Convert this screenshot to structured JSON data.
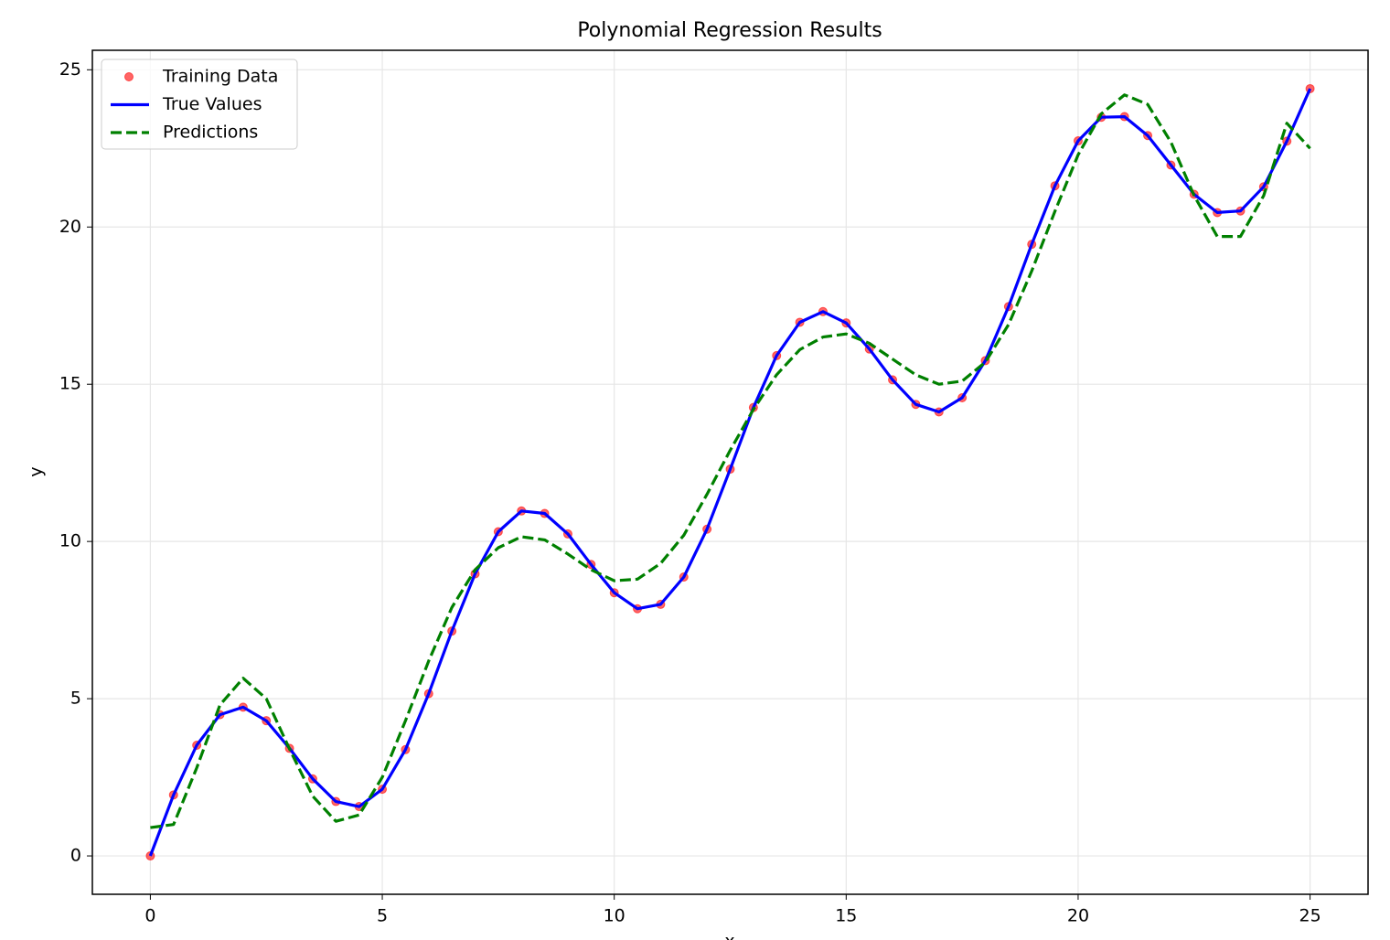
{
  "chart_data": {
    "type": "regression",
    "title": "Polynomial Regression Results",
    "xlabel": "x",
    "ylabel": "y",
    "x": [
      0,
      0.5,
      1,
      1.5,
      2,
      2.5,
      3,
      3.5,
      4,
      4.5,
      5,
      5.5,
      6,
      6.5,
      7,
      7.5,
      8,
      8.5,
      9,
      9.5,
      10,
      10.5,
      11,
      11.5,
      12,
      12.5,
      13,
      13.5,
      14,
      14.5,
      15,
      15.5,
      16,
      16.5,
      17,
      17.5,
      18,
      18.5,
      19,
      19.5,
      20,
      20.5,
      21,
      21.5,
      22,
      22.5,
      23,
      23.5,
      24,
      24.5,
      25
    ],
    "series": [
      {
        "name": "Training Data",
        "kind": "scatter",
        "color": "#ff0000",
        "values": [
          0,
          1.94,
          3.52,
          4.49,
          4.73,
          4.3,
          3.42,
          2.45,
          1.73,
          1.57,
          2.12,
          3.38,
          5.16,
          7.15,
          8.97,
          10.31,
          10.97,
          10.89,
          10.24,
          9.27,
          8.37,
          7.86,
          8.0,
          8.87,
          10.39,
          12.3,
          14.26,
          15.91,
          16.97,
          17.31,
          16.95,
          16.12,
          15.14,
          14.36,
          14.12,
          14.57,
          15.75,
          17.47,
          19.45,
          21.31,
          22.74,
          23.49,
          23.51,
          22.91,
          21.97,
          21.04,
          20.46,
          20.51,
          21.28,
          22.73,
          24.4
        ]
      },
      {
        "name": "True Values",
        "kind": "line",
        "color": "#0000ff",
        "values": [
          0,
          1.94,
          3.52,
          4.49,
          4.73,
          4.3,
          3.42,
          2.45,
          1.73,
          1.57,
          2.12,
          3.38,
          5.16,
          7.15,
          8.97,
          10.31,
          10.97,
          10.89,
          10.24,
          9.27,
          8.37,
          7.86,
          8.0,
          8.87,
          10.39,
          12.3,
          14.26,
          15.91,
          16.97,
          17.31,
          16.95,
          16.12,
          15.14,
          14.36,
          14.12,
          14.57,
          15.75,
          17.47,
          19.45,
          21.31,
          22.74,
          23.49,
          23.51,
          22.91,
          21.97,
          21.04,
          20.46,
          20.51,
          21.28,
          22.73,
          24.4
        ]
      },
      {
        "name": "Predictions",
        "kind": "dashed",
        "color": "#008000",
        "values": [
          0.9,
          1.0,
          2.8,
          4.8,
          5.65,
          5.0,
          3.4,
          1.9,
          1.1,
          1.3,
          2.5,
          4.3,
          6.2,
          7.9,
          9.1,
          9.8,
          10.15,
          10.05,
          9.6,
          9.1,
          8.75,
          8.8,
          9.3,
          10.2,
          11.5,
          12.9,
          14.2,
          15.3,
          16.1,
          16.5,
          16.6,
          16.3,
          15.8,
          15.3,
          15.0,
          15.1,
          15.7,
          16.9,
          18.6,
          20.5,
          22.3,
          23.6,
          24.2,
          23.9,
          22.7,
          21.0,
          19.7,
          19.7,
          21.0,
          23.3,
          22.5
        ]
      }
    ],
    "xlim": [
      -1.25,
      26.25
    ],
    "ylim": [
      -1.22,
      25.62
    ],
    "xticks": [
      0,
      5,
      10,
      15,
      20,
      25
    ],
    "yticks": [
      0,
      5,
      10,
      15,
      20,
      25
    ],
    "grid": true,
    "legend": "upper left"
  }
}
